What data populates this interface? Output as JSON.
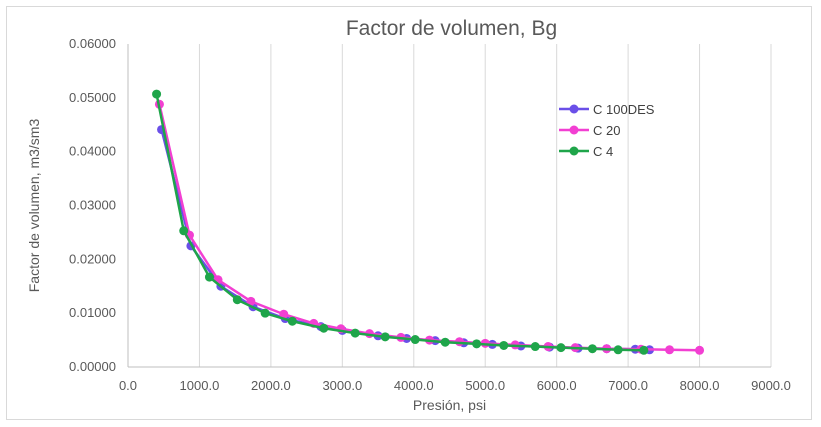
{
  "chart_data": {
    "type": "line",
    "title": "Factor de volumen, Bg",
    "xlabel": "Presión, psi",
    "ylabel": "Factor de volumen, m3/sm3",
    "xlim": [
      0,
      9000
    ],
    "ylim": [
      0,
      0.06
    ],
    "xticks": [
      0,
      1000,
      2000,
      3000,
      4000,
      5000,
      6000,
      7000,
      8000,
      9000
    ],
    "xtick_labels": [
      "0.0",
      "1000.0",
      "2000.0",
      "3000.0",
      "4000.0",
      "5000.0",
      "6000.0",
      "7000.0",
      "8000.0",
      "9000.0"
    ],
    "yticks": [
      0,
      0.01,
      0.02,
      0.03,
      0.04,
      0.05,
      0.06
    ],
    "ytick_labels": [
      "0.00000",
      "0.01000",
      "0.02000",
      "0.03000",
      "0.04000",
      "0.05000",
      "0.06000"
    ],
    "grid": "vertical",
    "legend_position": "right",
    "series": [
      {
        "name": "C 100DES",
        "color": "#6a4fe8",
        "x": [
          470,
          880,
          1300,
          1750,
          2200,
          2700,
          3000,
          3500,
          3900,
          4300,
          4700,
          5100,
          5500,
          5900,
          6300,
          6700,
          7100,
          7300
        ],
        "y": [
          0.0441,
          0.0225,
          0.015,
          0.0112,
          0.009,
          0.0075,
          0.0068,
          0.0058,
          0.0053,
          0.0049,
          0.0045,
          0.0042,
          0.0039,
          0.0037,
          0.0035,
          0.0034,
          0.0033,
          0.0032
        ]
      },
      {
        "name": "C 20",
        "color": "#f23fd2",
        "x": [
          440,
          860,
          1260,
          1720,
          2180,
          2600,
          2980,
          3380,
          3820,
          4220,
          4640,
          5000,
          5420,
          5880,
          6260,
          6700,
          7180,
          7580,
          8000
        ],
        "y": [
          0.0488,
          0.0245,
          0.0162,
          0.0122,
          0.0098,
          0.0081,
          0.0071,
          0.0062,
          0.0055,
          0.005,
          0.0047,
          0.0044,
          0.0041,
          0.0038,
          0.0036,
          0.0034,
          0.0033,
          0.0032,
          0.0031
        ]
      },
      {
        "name": "C 4",
        "color": "#1fa54a",
        "x": [
          400,
          780,
          1140,
          1530,
          1920,
          2300,
          2740,
          3180,
          3600,
          4020,
          4440,
          4880,
          5260,
          5700,
          6060,
          6500,
          6860,
          7220
        ],
        "y": [
          0.0507,
          0.0253,
          0.0167,
          0.0125,
          0.01,
          0.0085,
          0.0072,
          0.0063,
          0.0056,
          0.0051,
          0.0046,
          0.0043,
          0.004,
          0.0038,
          0.0036,
          0.0034,
          0.0032,
          0.0031
        ]
      }
    ]
  }
}
